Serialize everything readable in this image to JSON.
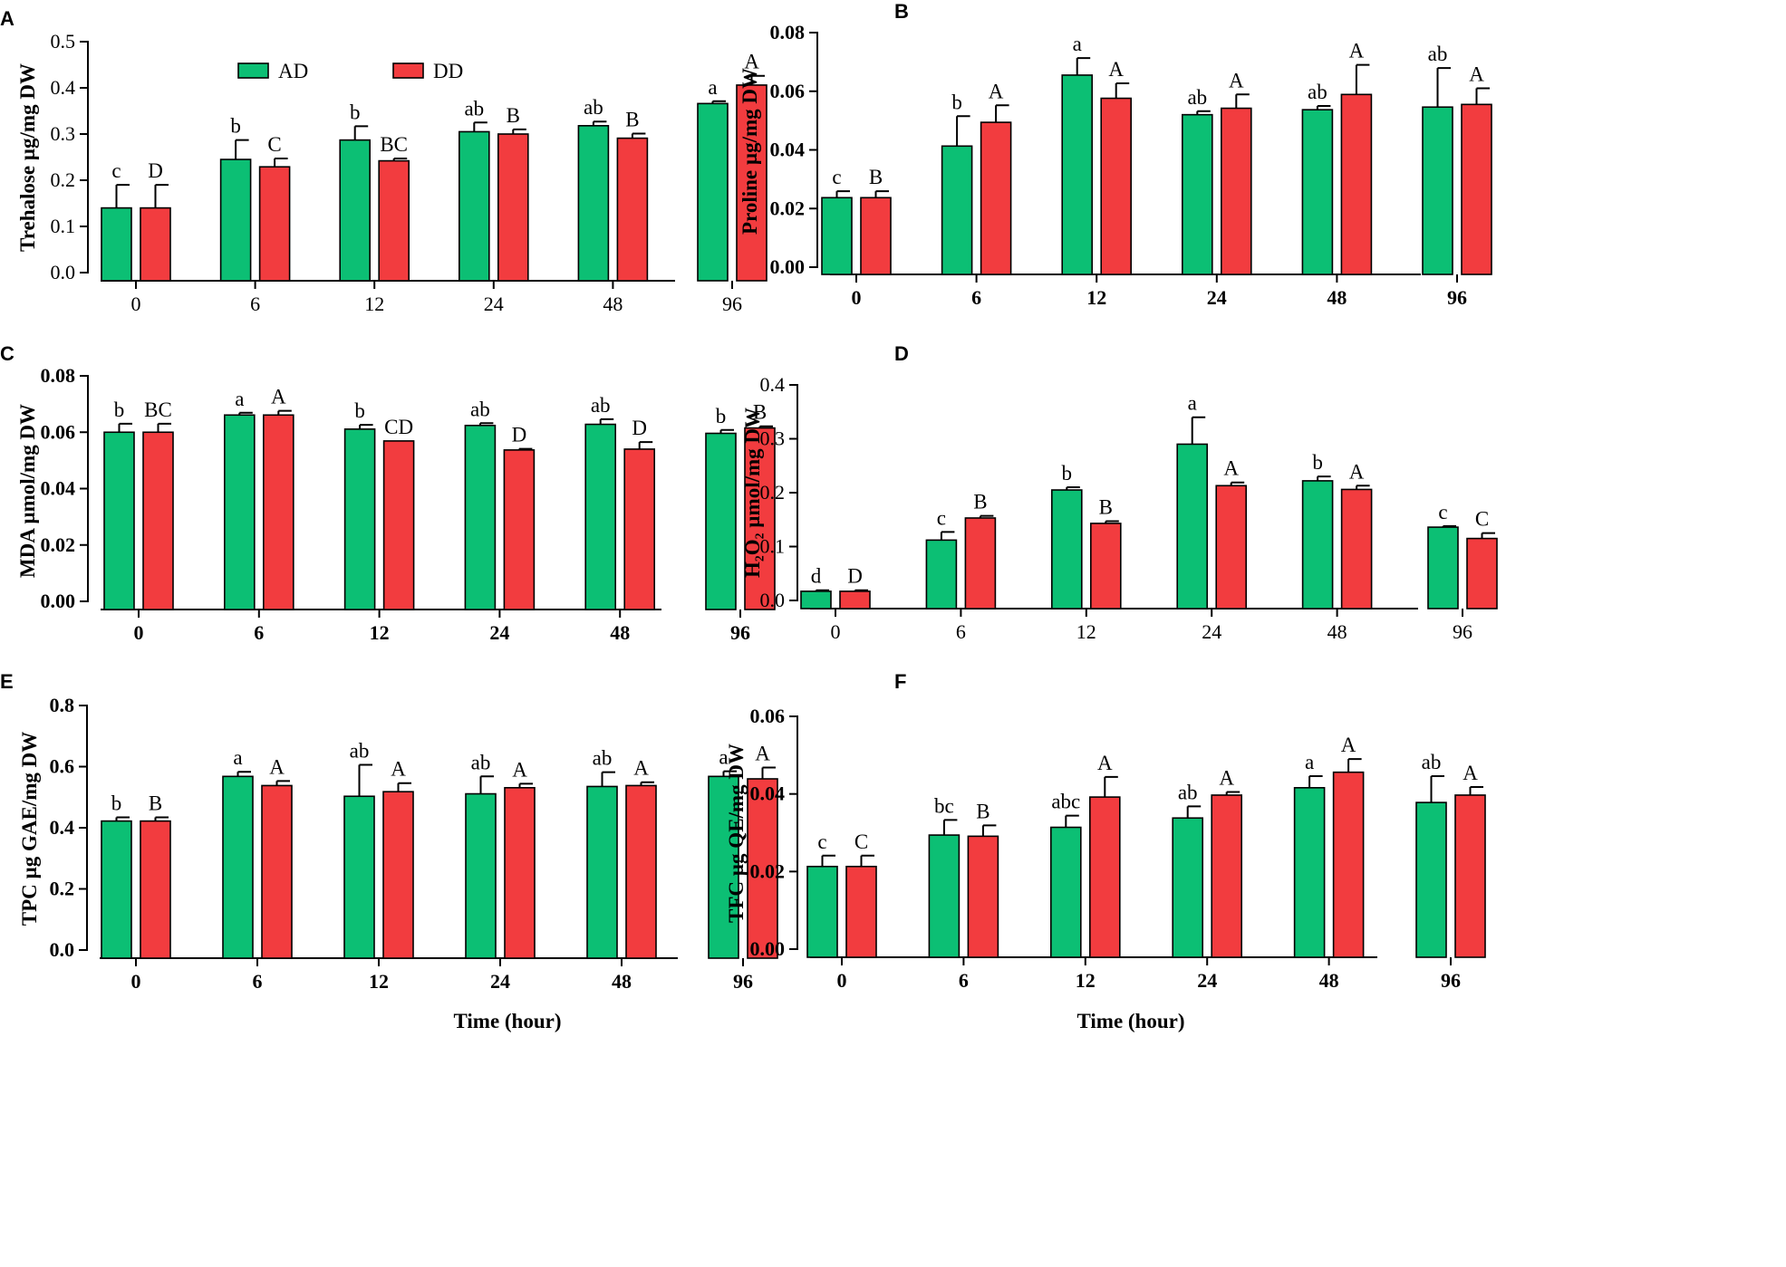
{
  "colors": {
    "AD": "#0cbf74",
    "DD": "#f23c3f"
  },
  "legend": {
    "ad_label": "AD",
    "dd_label": "DD"
  },
  "x_axis_title": "Time (hour)",
  "chart_data": [
    {
      "id": "A",
      "panel_letter": "A",
      "type": "bar",
      "ylabel": "Trehalose µg/mg DW",
      "categories": [
        "0",
        "6",
        "12",
        "24",
        "48",
        "96"
      ],
      "ylim": [
        0,
        0.5
      ],
      "yticks": [
        0,
        0.1,
        0.2,
        0.3,
        0.4,
        0.5
      ],
      "ytick_labels": [
        "0.0",
        "0.1",
        "0.2",
        "0.3",
        "0.4",
        "0.5"
      ],
      "bold_ticks": false,
      "series": [
        {
          "name": "AD",
          "values": [
            0.14,
            0.245,
            0.287,
            0.305,
            0.318,
            0.366
          ],
          "errors": [
            0.05,
            0.042,
            0.03,
            0.02,
            0.009,
            0.005
          ],
          "letters": [
            "c",
            "b",
            "b",
            "ab",
            "ab",
            "a"
          ]
        },
        {
          "name": "DD",
          "values": [
            0.14,
            0.229,
            0.242,
            0.3,
            0.291,
            0.406
          ],
          "errors": [
            0.05,
            0.018,
            0.005,
            0.01,
            0.01,
            0.02
          ],
          "letters": [
            "D",
            "C",
            "BC",
            "B",
            "B",
            "A"
          ]
        }
      ]
    },
    {
      "id": "B",
      "panel_letter": "B",
      "type": "bar",
      "ylabel": "Proline µg/mg DW",
      "categories": [
        "0",
        "6",
        "12",
        "24",
        "48",
        "96"
      ],
      "ylim": [
        0,
        0.08
      ],
      "yticks": [
        0,
        0.02,
        0.04,
        0.06,
        0.08
      ],
      "ytick_labels": [
        "0.00",
        "0.02",
        "0.04",
        "0.06",
        "0.08"
      ],
      "bold_ticks": true,
      "series": [
        {
          "name": "AD",
          "values": [
            0.0237,
            0.0413,
            0.0655,
            0.052,
            0.0537,
            0.0546
          ],
          "errors": [
            0.0022,
            0.0102,
            0.0058,
            0.0012,
            0.0013,
            0.0133
          ],
          "letters": [
            "c",
            "b",
            "a",
            "ab",
            "ab",
            "ab"
          ]
        },
        {
          "name": "DD",
          "values": [
            0.0237,
            0.0494,
            0.0576,
            0.0542,
            0.0589,
            0.0555
          ],
          "errors": [
            0.0022,
            0.0058,
            0.0051,
            0.0047,
            0.0101,
            0.0055
          ],
          "letters": [
            "B",
            "A",
            "A",
            "A",
            "A",
            "A"
          ]
        }
      ]
    },
    {
      "id": "C",
      "panel_letter": "C",
      "type": "bar",
      "ylabel": "MDA µmol/mg DW",
      "categories": [
        "0",
        "6",
        "12",
        "24",
        "48",
        "96"
      ],
      "ylim": [
        0,
        0.08
      ],
      "yticks": [
        0,
        0.02,
        0.04,
        0.06,
        0.08
      ],
      "ytick_labels": [
        "0.00",
        "0.02",
        "0.04",
        "0.06",
        "0.08"
      ],
      "bold_ticks": true,
      "series": [
        {
          "name": "AD",
          "values": [
            0.06,
            0.0661,
            0.0611,
            0.0624,
            0.0628,
            0.0596
          ],
          "errors": [
            0.003,
            0.0008,
            0.0015,
            0.0008,
            0.0018,
            0.0012
          ],
          "letters": [
            "b",
            "a",
            "b",
            "ab",
            "ab",
            "b"
          ]
        },
        {
          "name": "DD",
          "values": [
            0.06,
            0.0661,
            0.0569,
            0.0537,
            0.054,
            0.0615
          ],
          "errors": [
            0.003,
            0.0015,
            0.0,
            0.0004,
            0.0025,
            0.0006
          ],
          "letters": [
            "BC",
            "A",
            "CD",
            "D",
            "D",
            "B"
          ]
        }
      ]
    },
    {
      "id": "D",
      "panel_letter": "D",
      "type": "bar",
      "ylabel": "H₂O₂ µmol/mg DW",
      "categories": [
        "0",
        "6",
        "12",
        "24",
        "48",
        "96"
      ],
      "ylim": [
        0,
        0.4
      ],
      "yticks": [
        0,
        0.1,
        0.2,
        0.3,
        0.4
      ],
      "ytick_labels": [
        "0.0",
        "0.1",
        "0.2",
        "0.3",
        "0.4"
      ],
      "bold_ticks": false,
      "series": [
        {
          "name": "AD",
          "values": [
            0.017,
            0.112,
            0.205,
            0.29,
            0.222,
            0.136
          ],
          "errors": [
            0.002,
            0.015,
            0.005,
            0.05,
            0.008,
            0.002
          ],
          "letters": [
            "d",
            "c",
            "b",
            "a",
            "b",
            "c"
          ]
        },
        {
          "name": "DD",
          "values": [
            0.017,
            0.153,
            0.143,
            0.213,
            0.206,
            0.115
          ],
          "errors": [
            0.002,
            0.004,
            0.004,
            0.006,
            0.007,
            0.01
          ],
          "letters": [
            "D",
            "B",
            "B",
            "A",
            "A",
            "C"
          ]
        }
      ]
    },
    {
      "id": "E",
      "panel_letter": "E",
      "type": "bar",
      "ylabel": "TPC µg GAE/mg DW",
      "categories": [
        "0",
        "6",
        "12",
        "24",
        "48",
        "96"
      ],
      "ylim": [
        0,
        0.8
      ],
      "yticks": [
        0,
        0.2,
        0.4,
        0.6,
        0.8
      ],
      "ytick_labels": [
        "0.0",
        "0.2",
        "0.4",
        "0.6",
        "0.8"
      ],
      "bold_ticks": true,
      "show_xlabel": true,
      "series": [
        {
          "name": "AD",
          "values": [
            0.422,
            0.568,
            0.503,
            0.511,
            0.535,
            0.568
          ],
          "errors": [
            0.012,
            0.015,
            0.103,
            0.057,
            0.047,
            0.017
          ],
          "letters": [
            "b",
            "a",
            "ab",
            "ab",
            "ab",
            "a"
          ]
        },
        {
          "name": "DD",
          "values": [
            0.422,
            0.538,
            0.518,
            0.531,
            0.538,
            0.56
          ],
          "errors": [
            0.012,
            0.015,
            0.028,
            0.013,
            0.011,
            0.037
          ],
          "letters": [
            "B",
            "A",
            "A",
            "A",
            "A",
            "A"
          ]
        }
      ]
    },
    {
      "id": "F",
      "panel_letter": "F",
      "type": "bar",
      "ylabel": "TFC µg QE/mg DW",
      "categories": [
        "0",
        "6",
        "12",
        "24",
        "48",
        "96"
      ],
      "ylim": [
        0,
        0.06
      ],
      "yticks": [
        0,
        0.02,
        0.04,
        0.06
      ],
      "ytick_labels": [
        "0.00",
        "0.02",
        "0.04",
        "0.06"
      ],
      "bold_ticks": true,
      "show_xlabel": true,
      "series": [
        {
          "name": "AD",
          "values": [
            0.0213,
            0.0294,
            0.0314,
            0.0338,
            0.0416,
            0.0378
          ],
          "errors": [
            0.0028,
            0.0039,
            0.003,
            0.003,
            0.003,
            0.0068
          ],
          "letters": [
            "c",
            "bc",
            "abc",
            "ab",
            "a",
            "ab"
          ]
        },
        {
          "name": "DD",
          "values": [
            0.0213,
            0.0291,
            0.0392,
            0.0397,
            0.0456,
            0.0397
          ],
          "errors": [
            0.0028,
            0.0028,
            0.0052,
            0.0008,
            0.0034,
            0.0021
          ],
          "letters": [
            "C",
            "B",
            "A",
            "A",
            "A",
            "A"
          ]
        }
      ]
    }
  ]
}
